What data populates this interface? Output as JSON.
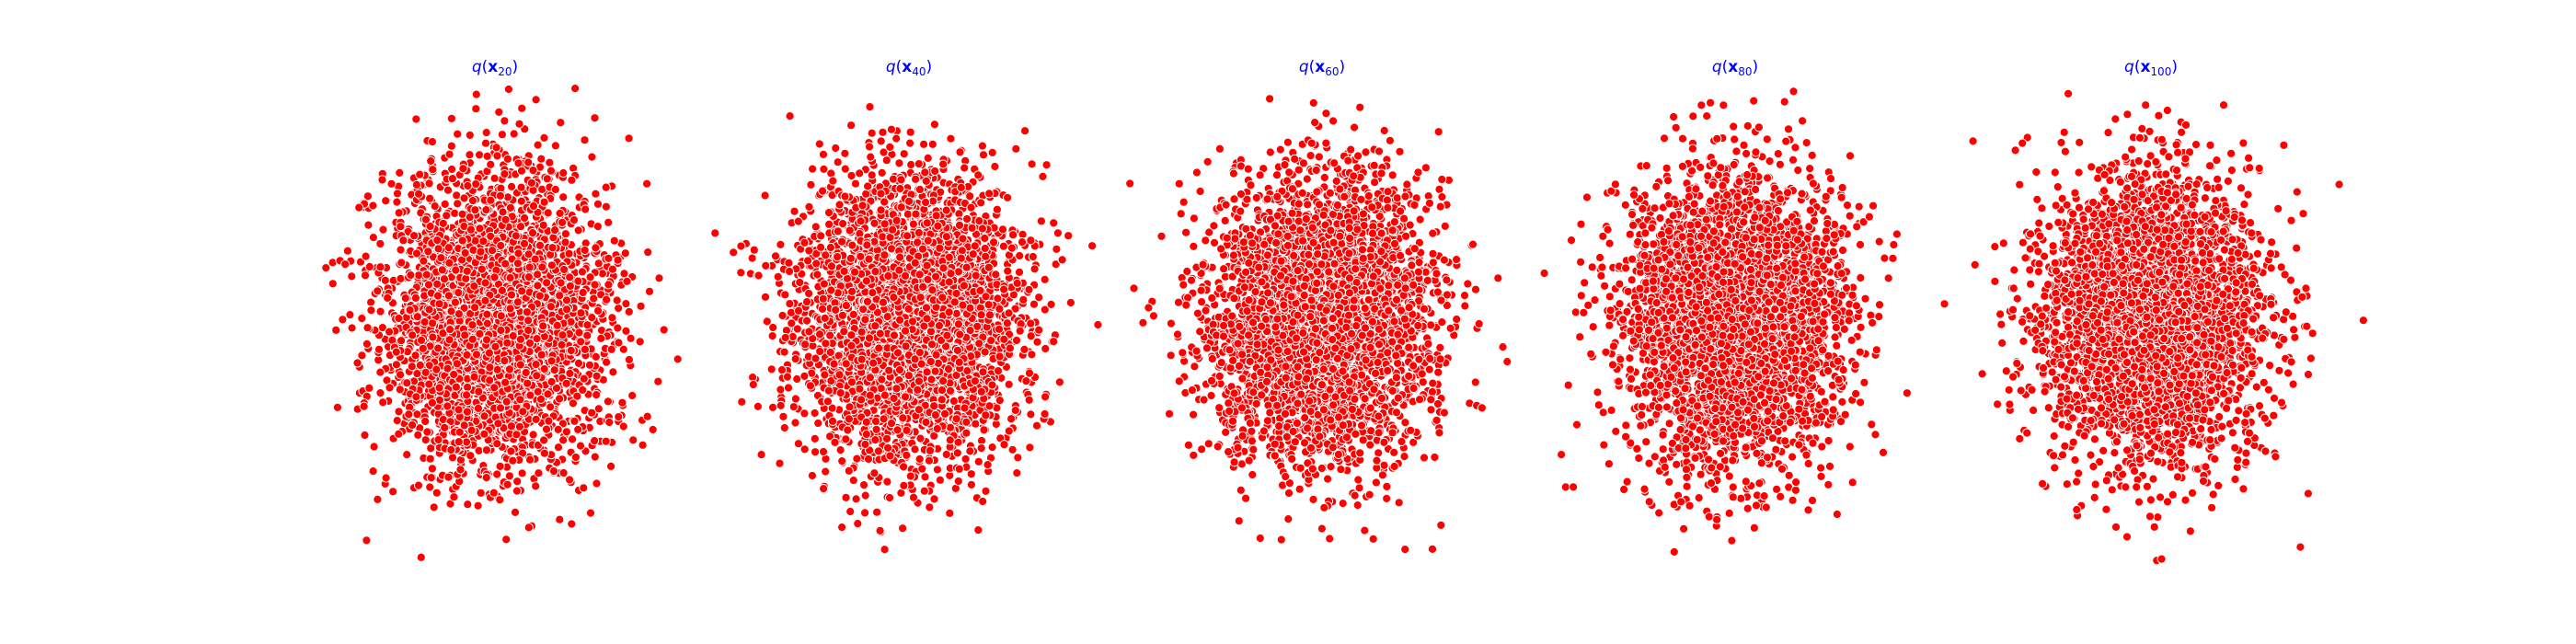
{
  "figure": {
    "accent_color": "#ff0000",
    "title_color": "#0000ff",
    "point_edge_color": "#ffffff"
  },
  "chart_data": [
    {
      "type": "scatter",
      "title": "q(x_20)",
      "title_parts": {
        "func": "q",
        "var": "x",
        "sub": "20"
      },
      "axes": "off",
      "grid": false,
      "legend": "none",
      "distribution": {
        "kind": "2d-gaussian",
        "center": [
          0,
          0
        ],
        "spread": [
          1,
          1
        ],
        "n_points": 4000,
        "seed": 20
      }
    },
    {
      "type": "scatter",
      "title": "q(x_40)",
      "title_parts": {
        "func": "q",
        "var": "x",
        "sub": "40"
      },
      "axes": "off",
      "grid": false,
      "legend": "none",
      "distribution": {
        "kind": "2d-gaussian",
        "center": [
          0,
          0
        ],
        "spread": [
          1,
          1
        ],
        "n_points": 4000,
        "seed": 40
      }
    },
    {
      "type": "scatter",
      "title": "q(x_60)",
      "title_parts": {
        "func": "q",
        "var": "x",
        "sub": "60"
      },
      "axes": "off",
      "grid": false,
      "legend": "none",
      "distribution": {
        "kind": "2d-gaussian",
        "center": [
          0,
          0
        ],
        "spread": [
          1,
          1
        ],
        "n_points": 4000,
        "seed": 60
      }
    },
    {
      "type": "scatter",
      "title": "q(x_80)",
      "title_parts": {
        "func": "q",
        "var": "x",
        "sub": "80"
      },
      "axes": "off",
      "grid": false,
      "legend": "none",
      "distribution": {
        "kind": "2d-gaussian",
        "center": [
          0,
          0
        ],
        "spread": [
          1,
          1
        ],
        "n_points": 4000,
        "seed": 80
      }
    },
    {
      "type": "scatter",
      "title": "q(x_100)",
      "title_parts": {
        "func": "q",
        "var": "x",
        "sub": "100"
      },
      "axes": "off",
      "grid": false,
      "legend": "none",
      "distribution": {
        "kind": "2d-gaussian",
        "center": [
          0,
          0
        ],
        "spread": [
          1,
          1
        ],
        "n_points": 4000,
        "seed": 100
      }
    }
  ]
}
